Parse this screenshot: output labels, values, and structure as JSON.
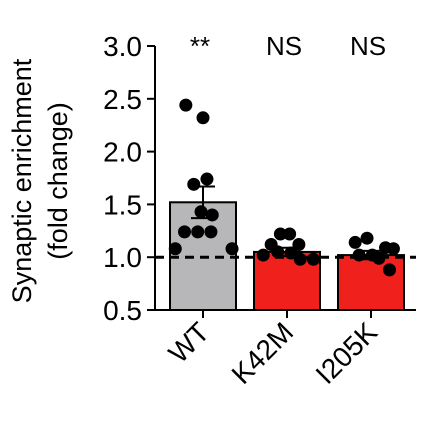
{
  "chart_data": {
    "type": "bar",
    "ylabel_line1": "Synaptic enrichment",
    "ylabel_line2": "(fold change)",
    "ylim": [
      0.5,
      3.0
    ],
    "yticks": [
      0.5,
      1.0,
      1.5,
      2.0,
      2.5,
      3.0
    ],
    "ytick_labels": [
      "0.5",
      "1.0",
      "1.5",
      "2.0",
      "2.5",
      "3.0"
    ],
    "reference_line": 1.0,
    "categories": [
      "WT",
      "K42M",
      "I205K"
    ],
    "means": [
      1.52,
      1.05,
      1.02
    ],
    "sem": [
      0.15,
      0.04,
      0.04
    ],
    "significance": [
      "**",
      "NS",
      "NS"
    ],
    "bar_colors": [
      "#b7b7b9",
      "#f0201c",
      "#f0201c"
    ],
    "points": [
      [
        {
          "x": -0.26,
          "y": 2.44
        },
        {
          "x": 0.0,
          "y": 2.32
        },
        {
          "x": 0.06,
          "y": 1.74
        },
        {
          "x": -0.14,
          "y": 1.69
        },
        {
          "x": -0.03,
          "y": 1.43
        },
        {
          "x": 0.14,
          "y": 1.4
        },
        {
          "x": -0.28,
          "y": 1.24
        },
        {
          "x": -0.08,
          "y": 1.24
        },
        {
          "x": 0.12,
          "y": 1.24
        },
        {
          "x": -0.42,
          "y": 1.08
        },
        {
          "x": 0.44,
          "y": 1.08
        }
      ],
      [
        {
          "x": -0.24,
          "y": 1.12
        },
        {
          "x": -0.1,
          "y": 1.22
        },
        {
          "x": 0.04,
          "y": 1.22
        },
        {
          "x": 0.18,
          "y": 1.12
        },
        {
          "x": -0.36,
          "y": 1.02
        },
        {
          "x": -0.14,
          "y": 1.05
        },
        {
          "x": 0.06,
          "y": 1.04
        },
        {
          "x": 0.2,
          "y": 0.98
        },
        {
          "x": 0.4,
          "y": 0.98
        }
      ],
      [
        {
          "x": -0.24,
          "y": 1.14
        },
        {
          "x": -0.06,
          "y": 1.18
        },
        {
          "x": 0.22,
          "y": 1.09
        },
        {
          "x": 0.34,
          "y": 1.08
        },
        {
          "x": -0.18,
          "y": 1.02
        },
        {
          "x": 0.02,
          "y": 1.02
        },
        {
          "x": 0.12,
          "y": 0.99
        },
        {
          "x": 0.28,
          "y": 0.88
        }
      ]
    ],
    "colors": {
      "axis": "#000000",
      "point": "#000000",
      "errorbar": "#000000",
      "reference_line": "#000000"
    }
  }
}
